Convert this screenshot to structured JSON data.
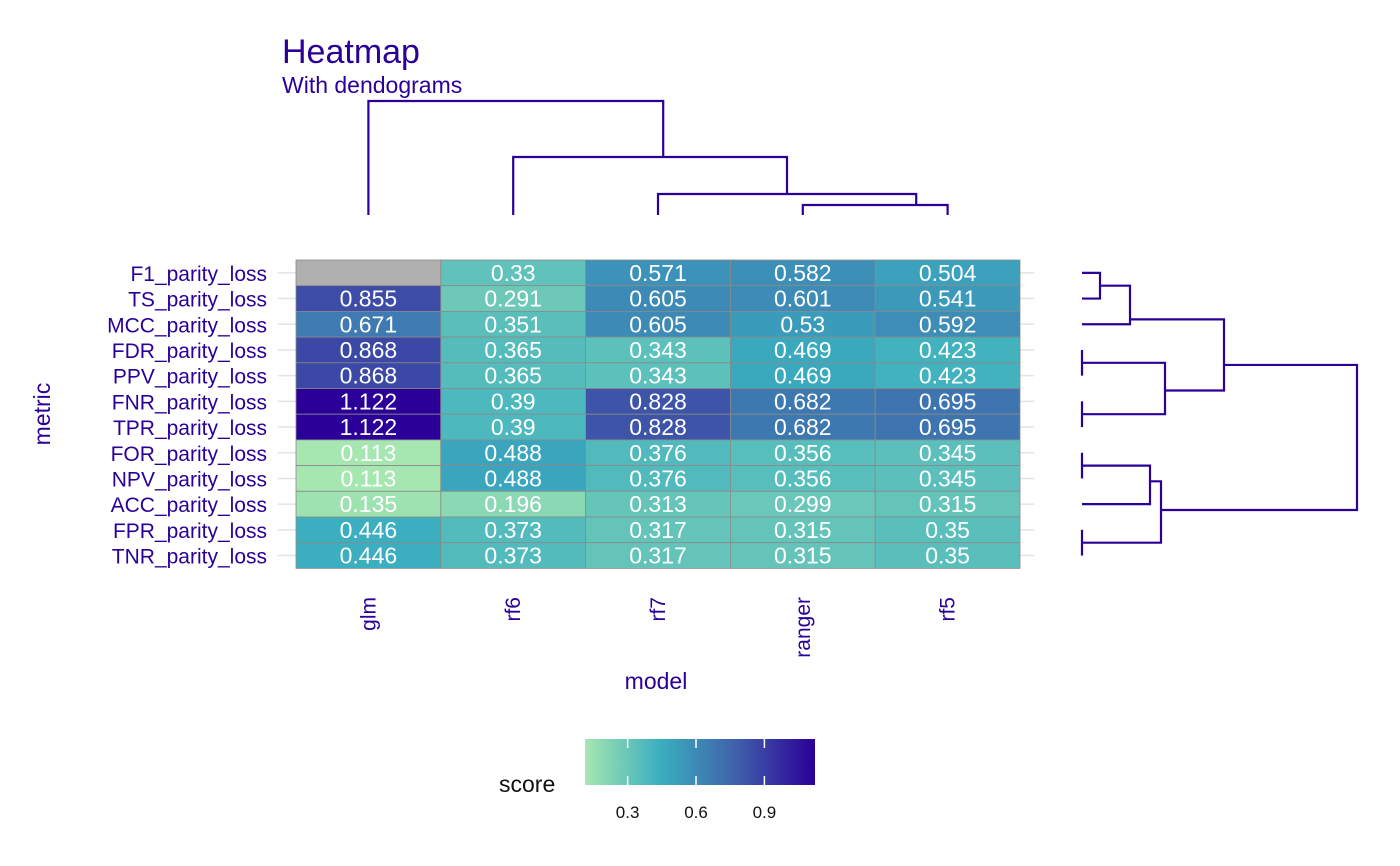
{
  "chart_data": {
    "type": "heatmap",
    "title": "Heatmap",
    "subtitle": "With dendograms",
    "xlabel": "model",
    "ylabel": "metric",
    "x": [
      "glm",
      "rf6",
      "rf7",
      "ranger",
      "rf5"
    ],
    "y": [
      "F1_parity_loss",
      "TS_parity_loss",
      "MCC_parity_loss",
      "FDR_parity_loss",
      "PPV_parity_loss",
      "FNR_parity_loss",
      "TPR_parity_loss",
      "FOR_parity_loss",
      "NPV_parity_loss",
      "ACC_parity_loss",
      "FPR_parity_loss",
      "TNR_parity_loss"
    ],
    "values": [
      [
        null,
        0.33,
        0.571,
        0.582,
        0.504
      ],
      [
        0.855,
        0.291,
        0.605,
        0.601,
        0.541
      ],
      [
        0.671,
        0.351,
        0.605,
        0.53,
        0.592
      ],
      [
        0.868,
        0.365,
        0.343,
        0.469,
        0.423
      ],
      [
        0.868,
        0.365,
        0.343,
        0.469,
        0.423
      ],
      [
        1.122,
        0.39,
        0.828,
        0.682,
        0.695
      ],
      [
        1.122,
        0.39,
        0.828,
        0.682,
        0.695
      ],
      [
        0.113,
        0.488,
        0.376,
        0.356,
        0.345
      ],
      [
        0.113,
        0.488,
        0.376,
        0.356,
        0.345
      ],
      [
        0.135,
        0.196,
        0.313,
        0.299,
        0.315
      ],
      [
        0.446,
        0.373,
        0.317,
        0.315,
        0.35
      ],
      [
        0.446,
        0.373,
        0.317,
        0.315,
        0.35
      ]
    ],
    "legend": {
      "title": "score",
      "position": "bottom",
      "ticks": [
        0.3,
        0.6,
        0.9
      ],
      "range": [
        0.113,
        1.122
      ],
      "colors": [
        "#a6e6b1",
        "#3aaebf",
        "#4060ab",
        "#2b0098"
      ]
    },
    "missing_color": "#b0b0b0",
    "text_color": "#2b0098",
    "dendrogram_color": "#2b0098"
  }
}
